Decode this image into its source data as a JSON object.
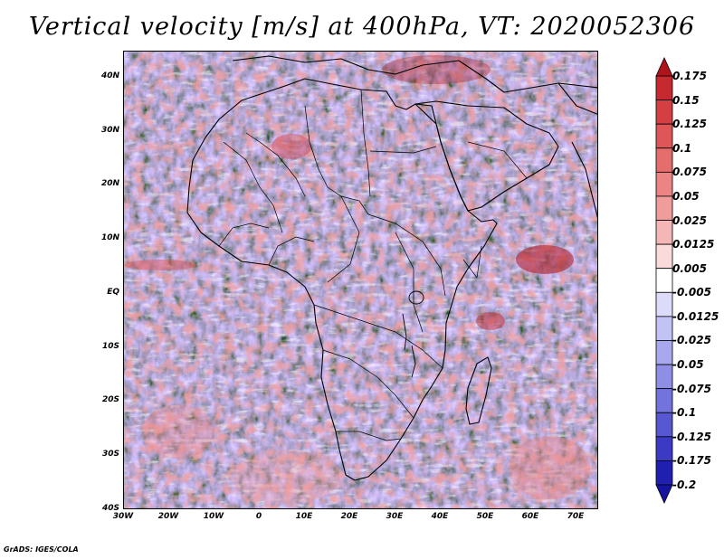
{
  "title": "Vertical velocity [m/s] at 400hPa, VT: 2020052306",
  "credit": "GrADS: IGES/COLA",
  "map": {
    "lat_labels": [
      "40N",
      "30N",
      "20N",
      "10N",
      "EQ",
      "10S",
      "20S",
      "30S",
      "40S"
    ],
    "lon_labels": [
      "30W",
      "20W",
      "10W",
      "0",
      "10E",
      "20E",
      "30E",
      "40E",
      "50E",
      "60E",
      "70E"
    ],
    "lat_range": [
      -40,
      45
    ],
    "lon_range": [
      -30,
      75
    ],
    "field_description": "noisy mix of blue (sinking) and red (rising) vertical velocity"
  },
  "colorbar": {
    "labels": [
      "0.175",
      "0.15",
      "0.125",
      "0.1",
      "0.075",
      "0.05",
      "0.025",
      "0.0125",
      "0.005",
      "-0.005",
      "-0.0125",
      "-0.025",
      "-0.05",
      "-0.075",
      "-0.1",
      "-0.125",
      "-0.175",
      "-0.2"
    ],
    "colors": [
      "#b0131a",
      "#c62a30",
      "#d43f44",
      "#de5657",
      "#e56d6c",
      "#eb8483",
      "#f09c9a",
      "#f5b7b5",
      "#fadbd9",
      "#ffffff",
      "#dcdcfa",
      "#c2c2f4",
      "#a8a8ee",
      "#8e8ee6",
      "#7373de",
      "#5757d2",
      "#3a3ac4",
      "#2020b0",
      "#1414a0"
    ]
  }
}
